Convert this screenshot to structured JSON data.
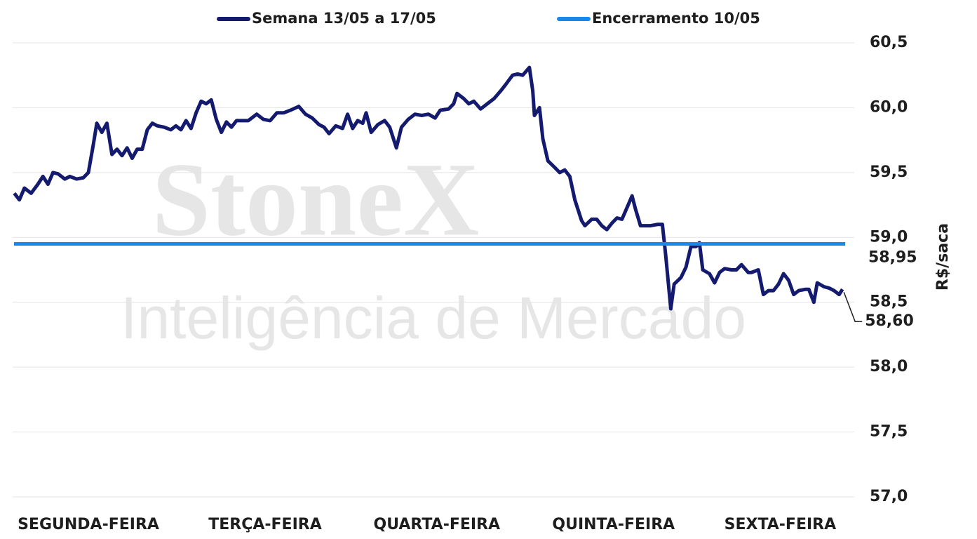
{
  "chart_data": {
    "type": "line",
    "watermark": [
      "StoneX",
      "Inteligência de Mercado"
    ],
    "y_label": "R$/saca",
    "ylim": [
      57,
      60.5
    ],
    "yticks": [
      {
        "value": 57,
        "label": "57,0"
      },
      {
        "value": 57.5,
        "label": "57,5"
      },
      {
        "value": 58,
        "label": "58,0"
      },
      {
        "value": 58.5,
        "label": "58,5"
      },
      {
        "value": 59,
        "label": "59,0"
      },
      {
        "value": 59.5,
        "label": "59,5"
      },
      {
        "value": 60,
        "label": "60,0"
      },
      {
        "value": 60.5,
        "label": "60,5"
      }
    ],
    "xlim": [
      0,
      5
    ],
    "xticks": [
      {
        "value": 0.45,
        "label": "SEGUNDA-FEIRA"
      },
      {
        "value": 1.5,
        "label": "TERÇA-FEIRA"
      },
      {
        "value": 2.52,
        "label": "QUARTA-FEIRA"
      },
      {
        "value": 3.57,
        "label": "QUINTA-FEIRA"
      },
      {
        "value": 4.56,
        "label": "SEXTA-FEIRA"
      }
    ],
    "grid": true,
    "legend": "top",
    "x": [
      0.01,
      0.04,
      0.07,
      0.11,
      0.15,
      0.18,
      0.21,
      0.24,
      0.27,
      0.31,
      0.34,
      0.38,
      0.42,
      0.45,
      0.48,
      0.5,
      0.53,
      0.56,
      0.59,
      0.62,
      0.65,
      0.68,
      0.71,
      0.74,
      0.77,
      0.8,
      0.83,
      0.86,
      0.9,
      0.94,
      0.97,
      1.0,
      1.03,
      1.06,
      1.09,
      1.12,
      1.15,
      1.18,
      1.21,
      1.24,
      1.27,
      1.3,
      1.33,
      1.36,
      1.4,
      1.45,
      1.49,
      1.53,
      1.57,
      1.61,
      1.65,
      1.7,
      1.74,
      1.78,
      1.82,
      1.85,
      1.88,
      1.92,
      1.96,
      1.99,
      2.02,
      2.05,
      2.08,
      2.1,
      2.13,
      2.17,
      2.21,
      2.24,
      2.28,
      2.31,
      2.35,
      2.39,
      2.43,
      2.47,
      2.51,
      2.54,
      2.59,
      2.62,
      2.64,
      2.68,
      2.71,
      2.74,
      2.78,
      2.82,
      2.86,
      2.9,
      2.93,
      2.97,
      3.0,
      3.03,
      3.07,
      3.09,
      3.1,
      3.13,
      3.15,
      3.18,
      3.22,
      3.25,
      3.28,
      3.31,
      3.34,
      3.38,
      3.4,
      3.44,
      3.47,
      3.5,
      3.53,
      3.56,
      3.59,
      3.62,
      3.65,
      3.68,
      3.7,
      3.73,
      3.76,
      3.79,
      3.83,
      3.86,
      3.88,
      3.91,
      3.93,
      3.97,
      4.0,
      4.03,
      4.06,
      4.08,
      4.1,
      4.14,
      4.17,
      4.2,
      4.23,
      4.27,
      4.3,
      4.33,
      4.37,
      4.39,
      4.43,
      4.46,
      4.49,
      4.52,
      4.55,
      4.58,
      4.61,
      4.64,
      4.67,
      4.71,
      4.73,
      4.76,
      4.78,
      4.82,
      4.85,
      4.88,
      4.91,
      4.93
    ],
    "series": [
      {
        "name": "Semana 13/05 a 17/05",
        "color": "#141b6e",
        "value_label": "58,60",
        "values": [
          59.34,
          59.29,
          59.38,
          59.34,
          59.41,
          59.47,
          59.41,
          59.5,
          59.49,
          59.45,
          59.47,
          59.45,
          59.46,
          59.5,
          59.72,
          59.88,
          59.81,
          59.88,
          59.64,
          59.68,
          59.63,
          59.69,
          59.61,
          59.68,
          59.68,
          59.83,
          59.88,
          59.86,
          59.85,
          59.83,
          59.86,
          59.83,
          59.9,
          59.84,
          59.96,
          60.05,
          60.03,
          60.06,
          59.91,
          59.81,
          59.89,
          59.85,
          59.9,
          59.9,
          59.9,
          59.95,
          59.91,
          59.9,
          59.96,
          59.96,
          59.98,
          60.01,
          59.95,
          59.92,
          59.87,
          59.85,
          59.8,
          59.86,
          59.84,
          59.95,
          59.84,
          59.9,
          59.88,
          59.96,
          59.81,
          59.87,
          59.9,
          59.85,
          59.69,
          59.85,
          59.91,
          59.95,
          59.94,
          59.95,
          59.92,
          59.98,
          59.99,
          60.03,
          60.11,
          60.07,
          60.03,
          60.05,
          59.99,
          60.03,
          60.07,
          60.13,
          60.18,
          60.25,
          60.26,
          60.25,
          60.31,
          60.13,
          59.94,
          60.0,
          59.76,
          59.59,
          59.54,
          59.5,
          59.52,
          59.47,
          59.29,
          59.13,
          59.09,
          59.14,
          59.14,
          59.09,
          59.06,
          59.11,
          59.15,
          59.14,
          59.23,
          59.32,
          59.22,
          59.09,
          59.09,
          59.09,
          59.1,
          59.1,
          58.86,
          58.45,
          58.64,
          58.69,
          58.77,
          58.93,
          58.93,
          58.96,
          58.75,
          58.72,
          58.65,
          58.73,
          58.76,
          58.75,
          58.75,
          58.79,
          58.73,
          58.73,
          58.75,
          58.56,
          58.59,
          58.59,
          58.64,
          58.72,
          58.67,
          58.56,
          58.59,
          58.6,
          58.6,
          58.5,
          58.65,
          58.62,
          58.61,
          58.59,
          58.56,
          58.6
        ]
      },
      {
        "name": "Encerramento 10/05",
        "color": "#1a88e8",
        "value": 58.95,
        "value_label": "58,95"
      }
    ]
  }
}
